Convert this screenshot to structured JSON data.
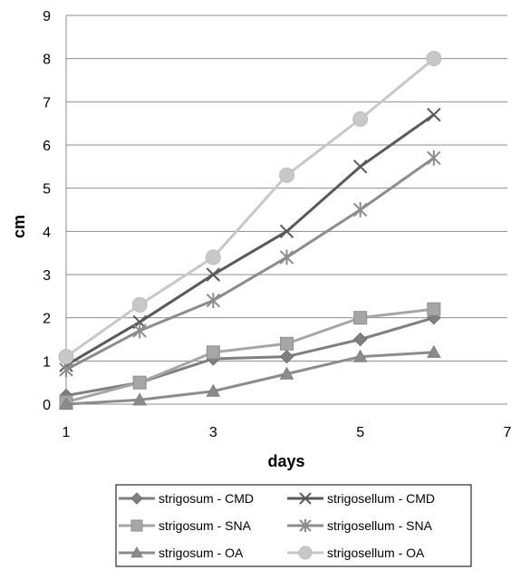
{
  "chart_data": {
    "type": "line",
    "xlabel": "days",
    "ylabel": "cm",
    "xlim": [
      1,
      7
    ],
    "ylim": [
      0,
      9
    ],
    "x_ticks": [
      1,
      3,
      5,
      7
    ],
    "y_ticks": [
      0,
      1,
      2,
      3,
      4,
      5,
      6,
      7,
      8,
      9
    ],
    "x_ticks_labels": [
      "1",
      "3",
      "5",
      "7"
    ],
    "y_ticks_labels": [
      "0",
      "1",
      "2",
      "3",
      "4",
      "5",
      "6",
      "7",
      "8",
      "9"
    ],
    "grid": "horizontal",
    "legend_position": "bottom",
    "x": [
      1,
      2,
      3,
      4,
      5,
      6
    ],
    "series": [
      {
        "name": "strigosum - CMD",
        "values": [
          0.2,
          0.5,
          1.05,
          1.1,
          1.5,
          2.0
        ],
        "color": "#7f7f7f",
        "marker": "diamond"
      },
      {
        "name": "strigosellum - CMD",
        "values": [
          0.9,
          1.9,
          3.0,
          4.0,
          5.5,
          6.7
        ],
        "color": "#595959",
        "marker": "x"
      },
      {
        "name": "strigosum - SNA",
        "values": [
          0.05,
          0.5,
          1.2,
          1.4,
          2.0,
          2.2
        ],
        "color": "#a6a6a6",
        "marker": "square"
      },
      {
        "name": "strigosellum - SNA",
        "values": [
          0.8,
          1.7,
          2.4,
          3.4,
          4.5,
          5.7
        ],
        "color": "#8c8c8c",
        "marker": "star"
      },
      {
        "name": "strigosum - OA",
        "values": [
          0.0,
          0.1,
          0.3,
          0.7,
          1.1,
          1.2
        ],
        "color": "#8c8c8c",
        "marker": "triangle"
      },
      {
        "name": "strigosellum - OA",
        "values": [
          1.1,
          2.3,
          3.4,
          5.3,
          6.6,
          8.0
        ],
        "color": "#c8c8c8",
        "marker": "circle"
      }
    ]
  }
}
